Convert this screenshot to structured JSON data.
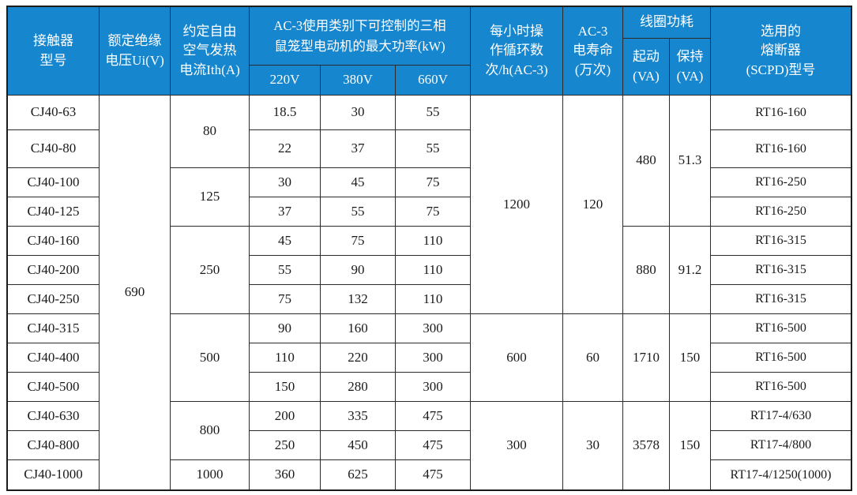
{
  "table": {
    "header": {
      "model": "接触器\n型号",
      "insulation": "额定绝缘\n电压Ui(V)",
      "thermal_current": "约定自由\n空气发热\n电流Ith(A)",
      "power_title": "AC-3使用类别下可控制的三相\n鼠笼型电动机的最大功率(kW)",
      "v220": "220V",
      "v380": "380V",
      "v660": "660V",
      "cycles": "每小时操\n作循环数\n次/h(AC-3)",
      "life": "AC-3\n电寿命\n(万次)",
      "coil": "线圈功耗",
      "coil_start": "起动\n(VA)",
      "coil_hold": "保持\n(VA)",
      "fuse": "选用的\n熔断器\n(SCPD)型号"
    },
    "insulation_voltage": "690",
    "rows": [
      {
        "model": "CJ40-63",
        "p220": "18.5",
        "p380": "30",
        "p660": "55",
        "fuse": "RT16-160"
      },
      {
        "model": "CJ40-80",
        "p220": "22",
        "p380": "37",
        "p660": "55",
        "fuse": "RT16-160"
      },
      {
        "model": "CJ40-100",
        "p220": "30",
        "p380": "45",
        "p660": "75",
        "fuse": "RT16-250"
      },
      {
        "model": "CJ40-125",
        "p220": "37",
        "p380": "55",
        "p660": "75",
        "fuse": "RT16-250"
      },
      {
        "model": "CJ40-160",
        "p220": "45",
        "p380": "75",
        "p660": "110",
        "fuse": "RT16-315"
      },
      {
        "model": "CJ40-200",
        "p220": "55",
        "p380": "90",
        "p660": "110",
        "fuse": "RT16-315"
      },
      {
        "model": "CJ40-250",
        "p220": "75",
        "p380": "132",
        "p660": "110",
        "fuse": "RT16-315"
      },
      {
        "model": "CJ40-315",
        "p220": "90",
        "p380": "160",
        "p660": "300",
        "fuse": "RT16-500"
      },
      {
        "model": "CJ40-400",
        "p220": "110",
        "p380": "220",
        "p660": "300",
        "fuse": "RT16-500"
      },
      {
        "model": "CJ40-500",
        "p220": "150",
        "p380": "280",
        "p660": "300",
        "fuse": "RT16-500"
      },
      {
        "model": "CJ40-630",
        "p220": "200",
        "p380": "335",
        "p660": "475",
        "fuse": "RT17-4/630"
      },
      {
        "model": "CJ40-800",
        "p220": "250",
        "p380": "450",
        "p660": "475",
        "fuse": "RT17-4/800"
      },
      {
        "model": "CJ40-1000",
        "p220": "360",
        "p380": "625",
        "p660": "475",
        "fuse": "RT17-4/1250(1000)"
      }
    ],
    "ith_groups": [
      {
        "value": "80",
        "span": 2
      },
      {
        "value": "125",
        "span": 2
      },
      {
        "value": "250",
        "span": 3
      },
      {
        "value": "500",
        "span": 3
      },
      {
        "value": "800",
        "span": 2
      },
      {
        "value": "1000",
        "span": 1
      }
    ],
    "cycle_groups": [
      {
        "cycles": "1200",
        "life": "120",
        "span": 7
      },
      {
        "cycles": "600",
        "life": "60",
        "span": 3
      },
      {
        "cycles": "300",
        "life": "30",
        "span": 3
      }
    ],
    "coil_groups": [
      {
        "start": "480",
        "hold": "51.3",
        "span": 4
      },
      {
        "start": "880",
        "hold": "91.2",
        "span": 3
      },
      {
        "start": "1710",
        "hold": "150",
        "span": 3
      },
      {
        "start": "3578",
        "hold": "150",
        "span": 3
      }
    ]
  },
  "colors": {
    "header_bg": "#1686CE",
    "header_text": "#FFFFFF",
    "body_bg": "#FFFFFF",
    "border": "#2B2B2B",
    "text": "#1A1A1A"
  }
}
